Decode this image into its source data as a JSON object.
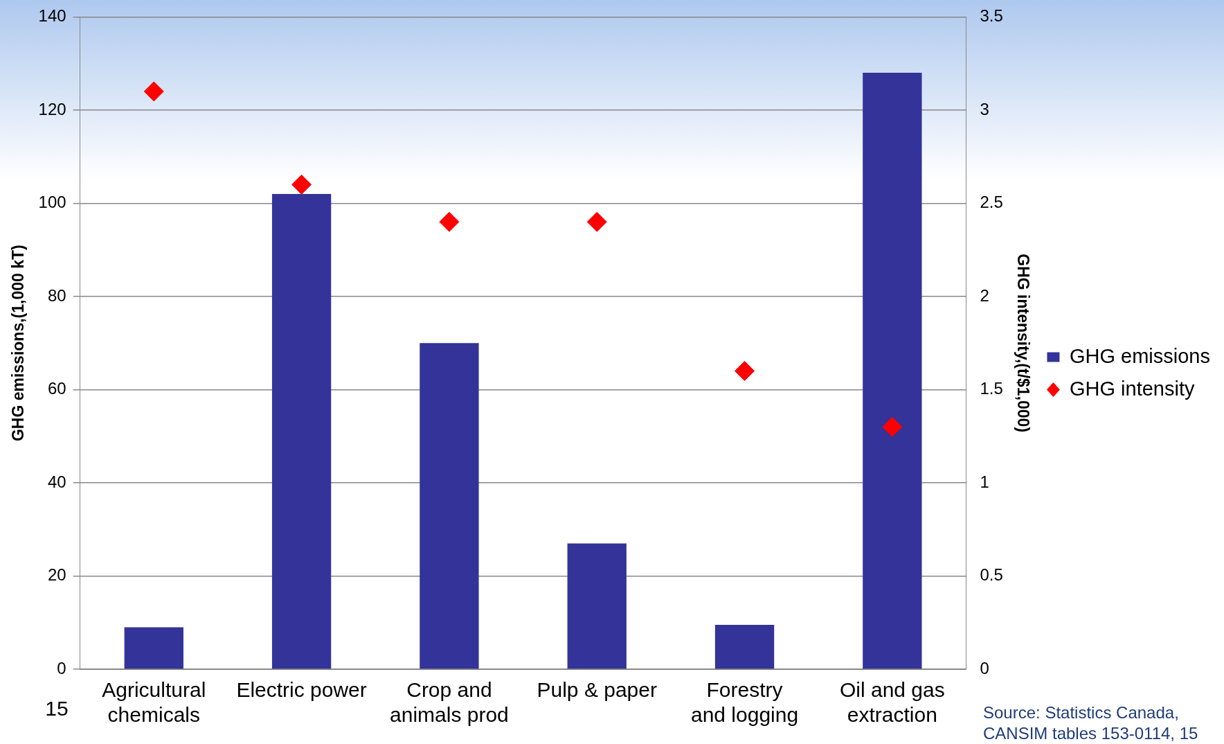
{
  "chart_data": {
    "type": "bar",
    "categories": [
      "Agricultural chemicals",
      "Electric power",
      "Crop and animals prod",
      "Pulp & paper",
      "Forestry and logging",
      "Oil and gas extraction"
    ],
    "ylabel": "GHG emissions,(1,000 kT)",
    "y2label": "GHG intensity,(t/$1,000)",
    "ylim": [
      0,
      140
    ],
    "yticks": [
      0,
      20,
      40,
      60,
      80,
      100,
      120,
      140
    ],
    "y2lim": [
      0,
      3.5
    ],
    "y2ticks": [
      0,
      0.5,
      1,
      1.5,
      2,
      2.5,
      3,
      3.5
    ],
    "grid": "y",
    "legend": "right",
    "series": [
      {
        "name": "GHG emissions",
        "color": "#333399",
        "values": [
          9,
          102,
          70,
          27,
          9.5,
          128
        ]
      },
      {
        "name": "GHG intensity",
        "type": "scatter",
        "axis": "y2",
        "marker": "diamond",
        "color": "#ff0000",
        "values": [
          3.1,
          2.6,
          2.4,
          2.4,
          1.6,
          1.3
        ]
      }
    ],
    "annotations": [
      "15",
      "Source: Statistics Canada, CANSIM tables 153-0114, 15"
    ]
  }
}
